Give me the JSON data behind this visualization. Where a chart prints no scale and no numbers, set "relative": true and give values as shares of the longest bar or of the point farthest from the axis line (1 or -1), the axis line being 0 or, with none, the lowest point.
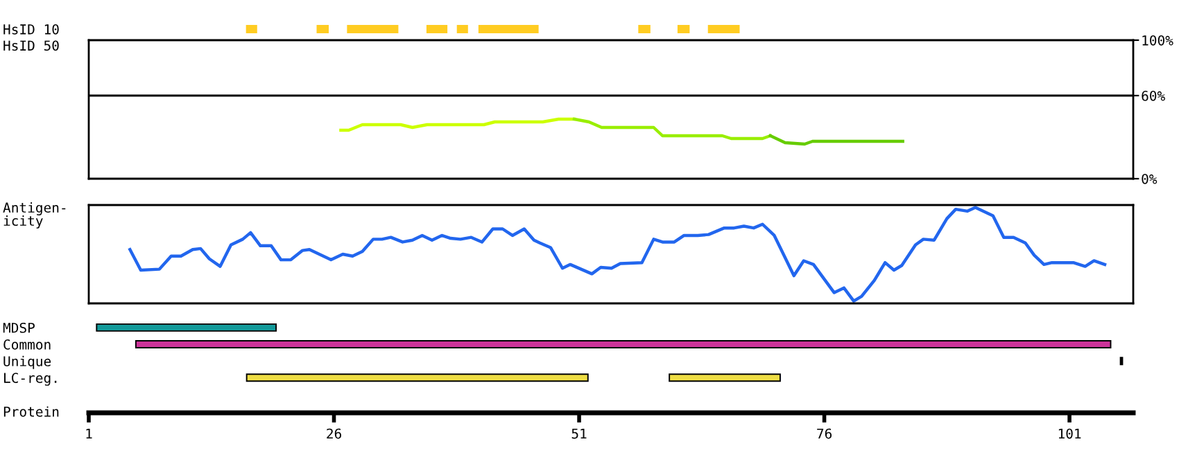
{
  "chart_data": [
    {
      "type": "bar",
      "orientation": "horizontal",
      "categories": [
        "HsID 10"
      ],
      "xlim": [
        1,
        107.5
      ],
      "tick_labels": "y",
      "series": [
        {
          "color": "#ffcc22",
          "base": [
            17.1
          ],
          "values": [
            1.0
          ]
        },
        {
          "color": "#ffcc22",
          "base": [
            24.3
          ],
          "values": [
            1.1
          ]
        },
        {
          "color": "#ffcc22",
          "base": [
            27.4
          ],
          "values": [
            5.1
          ]
        },
        {
          "color": "#ffcc22",
          "base": [
            35.5
          ],
          "values": [
            2.0
          ]
        },
        {
          "color": "#ffcc22",
          "base": [
            38.6
          ],
          "values": [
            1.0
          ]
        },
        {
          "color": "#ffcc22",
          "base": [
            40.8
          ],
          "values": [
            6.0
          ]
        },
        {
          "color": "#ffcc22",
          "base": [
            57.1
          ],
          "values": [
            1.1
          ]
        },
        {
          "color": "#ffcc22",
          "base": [
            61.1
          ],
          "values": [
            1.1
          ]
        },
        {
          "color": "#ffcc22",
          "base": [
            64.2
          ],
          "values": [
            3.1
          ]
        }
      ]
    },
    {
      "type": "line",
      "ylabel": "HsID 50",
      "xlim": [
        1,
        107.5
      ],
      "ylim": [
        0,
        100
      ],
      "yticks": [
        {
          "value": 0,
          "label": "0%"
        },
        {
          "value": 60,
          "label": "60%"
        },
        {
          "value": 100,
          "label": "100%"
        }
      ],
      "tick_labels": "y",
      "ref_lines": [
        {
          "axis": "y",
          "value": 60,
          "color": "#000000"
        }
      ],
      "series": [
        {
          "color": "#ccff00",
          "x": [
            26.7,
            27.5,
            28.9,
            32.8,
            34.0,
            35.5,
            41.3,
            42.4,
            47.3,
            48.9,
            50.5
          ],
          "values": [
            35,
            35,
            39,
            39,
            37,
            39,
            39,
            41,
            41,
            43,
            43
          ]
        },
        {
          "color": "#99ee00",
          "x": [
            50.5,
            52.0,
            53.3,
            58.6,
            59.5,
            65.6,
            66.5,
            69.7,
            70.5
          ],
          "values": [
            43,
            41,
            37,
            37,
            31,
            31,
            29,
            29,
            31
          ]
        },
        {
          "color": "#66cc00",
          "x": [
            70.5,
            72.0,
            74.0,
            74.8,
            84.0
          ],
          "values": [
            31,
            26,
            25,
            27,
            27
          ]
        }
      ]
    },
    {
      "type": "line",
      "ylabel": "Antigen-\nicity",
      "relative": true,
      "xlim": [
        1,
        107.5
      ],
      "tick_labels": false,
      "series": [
        {
          "color": "#2266ee",
          "x": [
            5.2,
            6.3,
            8.2,
            9.4,
            10.4,
            11.6,
            12.4,
            13.3,
            14.4,
            15.5,
            16.7,
            17.5,
            18.5,
            19.6,
            20.6,
            21.6,
            22.8,
            23.5,
            25.7,
            26.9,
            27.9,
            28.9,
            30.0,
            30.9,
            31.8,
            33.0,
            34.0,
            35.0,
            36.0,
            37.0,
            37.9,
            38.9,
            40.0,
            41.1,
            42.2,
            43.2,
            44.2,
            45.4,
            46.4,
            47.0,
            48.1,
            49.3,
            50.1,
            52.3,
            53.2,
            54.3,
            55.2,
            57.4,
            58.6,
            59.5,
            60.7,
            61.7,
            63.1,
            64.2,
            65.8,
            66.8,
            67.8,
            68.8,
            69.7,
            70.9,
            72.9,
            73.9,
            74.9,
            77.0,
            78.0,
            79.0,
            79.8,
            81.1,
            82.2,
            83.1,
            83.9,
            85.3,
            86.1,
            87.2,
            88.5,
            89.4,
            90.6,
            91.4,
            93.2,
            94.3,
            95.3,
            96.5,
            97.4,
            98.4,
            99.2,
            101.4,
            102.6,
            103.5,
            104.6
          ],
          "values": [
            0.55,
            0.33,
            0.34,
            0.48,
            0.48,
            0.55,
            0.56,
            0.45,
            0.37,
            0.6,
            0.66,
            0.73,
            0.59,
            0.59,
            0.44,
            0.44,
            0.54,
            0.55,
            0.44,
            0.5,
            0.48,
            0.53,
            0.66,
            0.66,
            0.68,
            0.63,
            0.65,
            0.7,
            0.65,
            0.7,
            0.67,
            0.66,
            0.68,
            0.63,
            0.77,
            0.77,
            0.7,
            0.77,
            0.65,
            0.62,
            0.57,
            0.35,
            0.39,
            0.29,
            0.36,
            0.35,
            0.4,
            0.41,
            0.66,
            0.63,
            0.63,
            0.7,
            0.7,
            0.71,
            0.78,
            0.78,
            0.8,
            0.78,
            0.82,
            0.7,
            0.27,
            0.43,
            0.39,
            0.09,
            0.14,
            0,
            0.05,
            0.22,
            0.41,
            0.33,
            0.38,
            0.6,
            0.66,
            0.65,
            0.88,
            0.98,
            0.96,
            1,
            0.91,
            0.68,
            0.68,
            0.62,
            0.49,
            0.39,
            0.41,
            0.41,
            0.37,
            0.43,
            0.39
          ]
        }
      ]
    },
    {
      "type": "bar",
      "orientation": "horizontal",
      "categories": [
        "MDSP",
        "Common",
        "Unique",
        "LC-reg."
      ],
      "xlabel": "Protein",
      "xlim": [
        1,
        107.5
      ],
      "xticks": [
        1,
        26,
        51,
        76,
        101
      ],
      "series": [
        {
          "colors": [
            "#119999",
            "#cc3399",
            "#000000",
            "#eedd44"
          ],
          "base": [
            1.8,
            5.8,
            106.2,
            17.1
          ],
          "values": [
            18.3,
            99.4,
            0.2,
            34.8
          ]
        },
        {
          "colors": [
            null,
            null,
            null,
            "#eedd44"
          ],
          "base": [
            null,
            null,
            null,
            60.2
          ],
          "values": [
            null,
            null,
            null,
            11.3
          ]
        }
      ]
    }
  ]
}
